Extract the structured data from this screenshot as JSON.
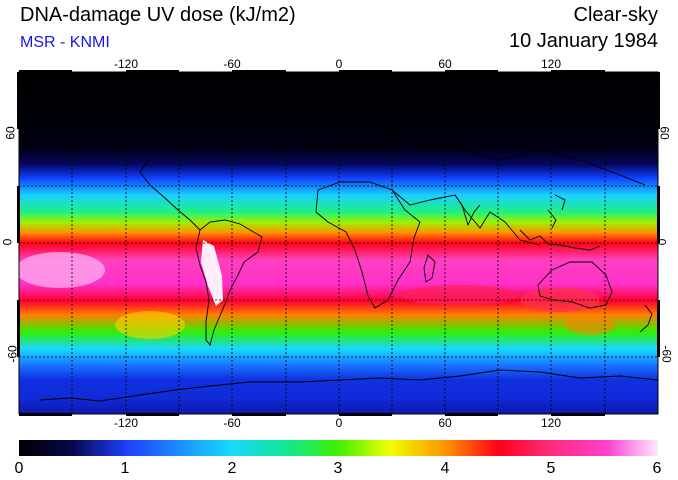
{
  "header": {
    "title": "DNA-damage UV dose (kJ/m2)",
    "subtitle": "MSR - KNMI",
    "condition": "Clear-sky",
    "date": "10 January 1984"
  },
  "map": {
    "lon_ticks": [
      "-120",
      "-60",
      "0",
      "60",
      "120"
    ],
    "lat_ticks": [
      "60",
      "0",
      "-60"
    ]
  },
  "colorbar": {
    "labels": [
      "0",
      "1",
      "2",
      "3",
      "4",
      "5",
      "6"
    ],
    "min": 0,
    "max": 6,
    "unit": "kJ/m2"
  },
  "colors": {
    "c0": "#000000",
    "c1": "#0b0b90",
    "c2": "#1f5cff",
    "c3": "#18d8ff",
    "c4": "#10e890",
    "c5": "#44f000",
    "c6": "#f0ff00",
    "c7": "#ff9000",
    "c8": "#ff0018",
    "c9": "#ff2a7a",
    "c10": "#ff40d0",
    "c11": "#ffe0ff"
  }
}
